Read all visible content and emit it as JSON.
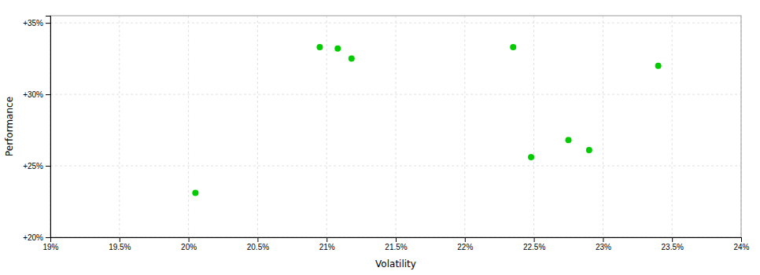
{
  "chart_data": {
    "type": "scatter",
    "xlabel": "Volatility",
    "ylabel": "Performance",
    "x": [
      0.2005,
      0.2095,
      0.2108,
      0.2118,
      0.2235,
      0.2248,
      0.2275,
      0.229,
      0.234
    ],
    "values": [
      0.231,
      0.333,
      0.332,
      0.325,
      0.333,
      0.256,
      0.268,
      0.261,
      0.32
    ],
    "color": "#00cc00",
    "marker": "circle",
    "xlim": [
      0.19,
      0.24
    ],
    "ylim": [
      0.2,
      0.355
    ],
    "xticks": [
      {
        "value": 0.19,
        "label": "19%"
      },
      {
        "value": 0.195,
        "label": "19.5%"
      },
      {
        "value": 0.2,
        "label": "20%"
      },
      {
        "value": 0.205,
        "label": "20.5%"
      },
      {
        "value": 0.21,
        "label": "21%"
      },
      {
        "value": 0.215,
        "label": "21.5%"
      },
      {
        "value": 0.22,
        "label": "22%"
      },
      {
        "value": 0.225,
        "label": "22.5%"
      },
      {
        "value": 0.23,
        "label": "23%"
      },
      {
        "value": 0.235,
        "label": "23.5%"
      },
      {
        "value": 0.24,
        "label": "24%"
      }
    ],
    "yticks": [
      {
        "value": 0.2,
        "label": "+20%"
      },
      {
        "value": 0.25,
        "label": "+25%"
      },
      {
        "value": 0.3,
        "label": "+30%"
      },
      {
        "value": 0.35,
        "label": "+35%"
      }
    ],
    "grid": true
  }
}
